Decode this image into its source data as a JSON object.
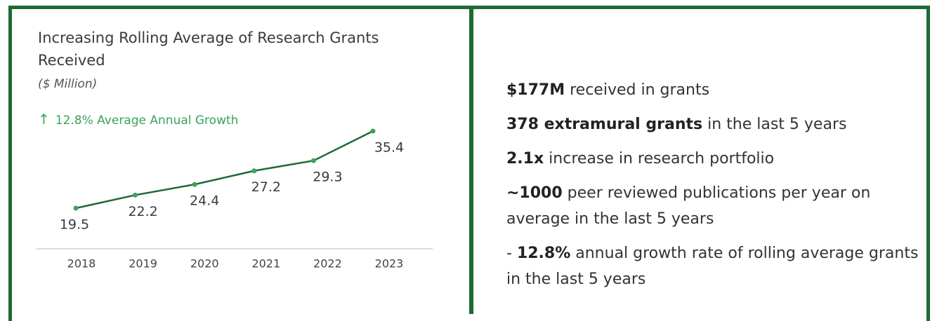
{
  "chart_data": {
    "type": "line",
    "title": "Increasing Rolling Average of Research Grants Received",
    "subtitle": "($ Million)",
    "annotation": "12.8% Average Annual Growth",
    "categories": [
      "2018",
      "2019",
      "2020",
      "2021",
      "2022",
      "2023"
    ],
    "values": [
      19.5,
      22.2,
      24.4,
      27.2,
      29.3,
      35.4
    ],
    "color": "#1d6a32",
    "marker_color": "#3aa35a"
  },
  "facts": [
    [
      {
        "text": "$177M",
        "bold": true
      },
      {
        "text": " received in grants",
        "bold": false
      }
    ],
    [
      {
        "text": "378 extramural grants",
        "bold": true
      },
      {
        "text": " in the last 5 years",
        "bold": false
      }
    ],
    [
      {
        "text": "2.1x",
        "bold": true
      },
      {
        "text": " increase in research portfolio",
        "bold": false
      }
    ],
    [
      {
        "text": "~1000",
        "bold": true
      },
      {
        "text": " peer reviewed publications per year on average in the last 5 years",
        "bold": false
      }
    ],
    [
      {
        "text": "- ",
        "bold": false
      },
      {
        "text": "12.8%",
        "bold": true
      },
      {
        "text": " annual growth rate of rolling average grants in the last 5 years",
        "bold": false
      }
    ]
  ]
}
